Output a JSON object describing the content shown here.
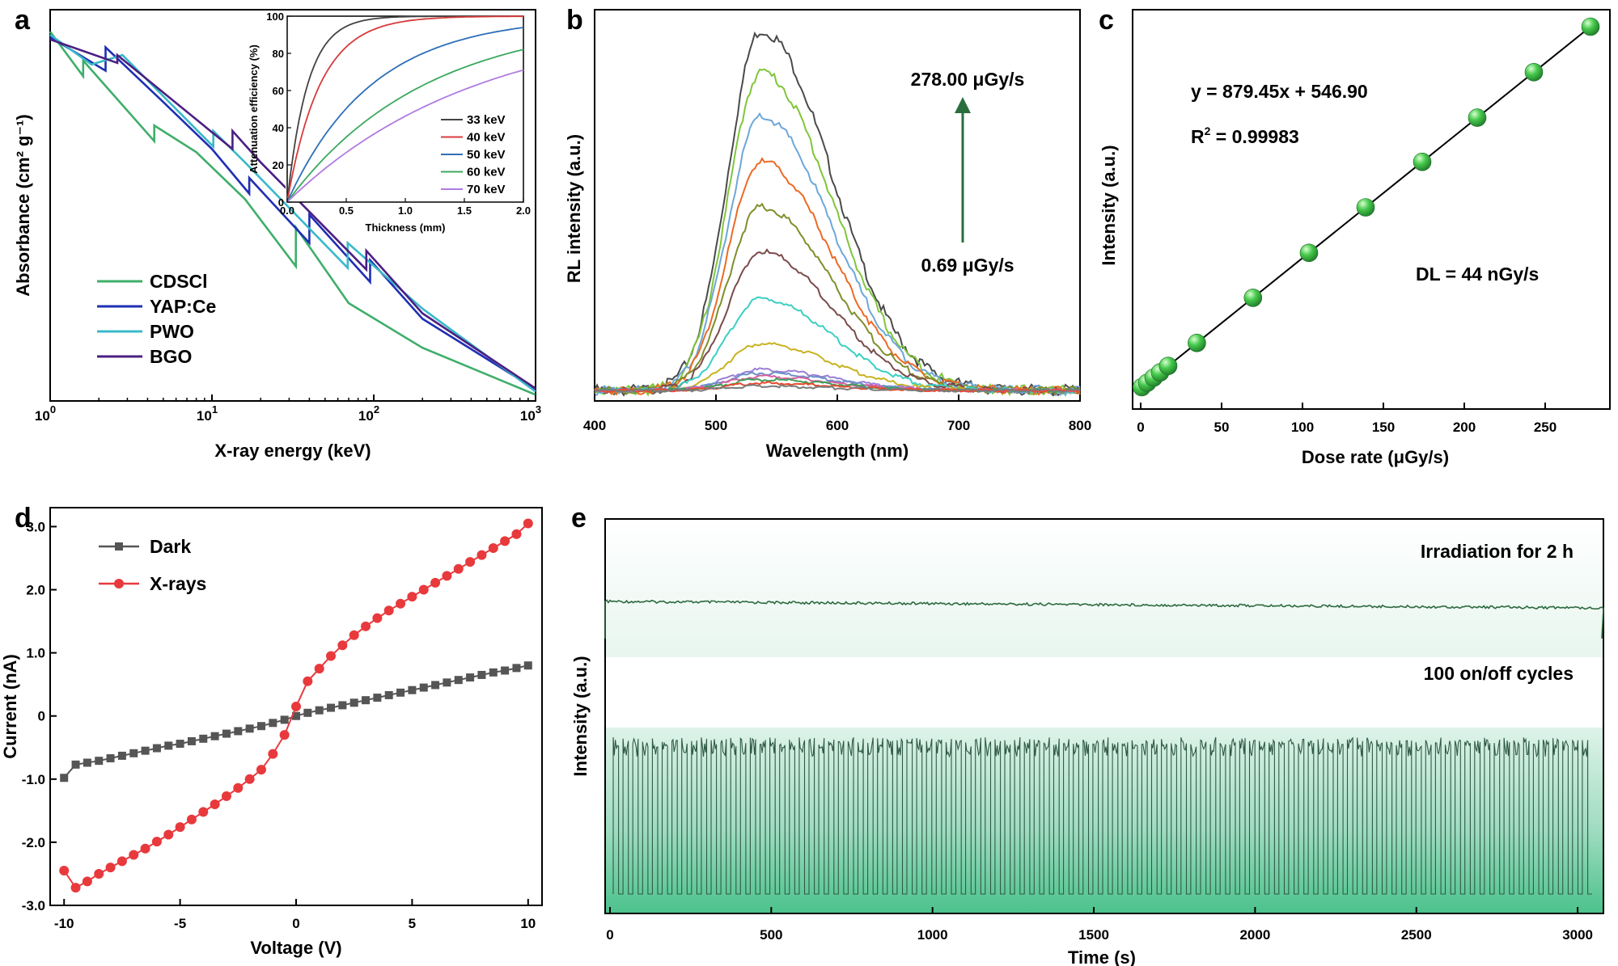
{
  "panels": {
    "a": "a",
    "b": "b",
    "c": "c",
    "d": "d",
    "e": "e"
  },
  "colors": {
    "cdsci": "#3fae6a",
    "yap": "#1f2fb3",
    "pwo": "#39b9c9",
    "bgo": "#4b1f82",
    "k33": "#444444",
    "k40": "#d83b3b",
    "k50": "#2e6fb8",
    "k60": "#3da85f",
    "k70": "#b07be0",
    "dark": "#555555",
    "xray": "#e8393c",
    "sphere": "#3ec04a",
    "arrow": "#2b6e3e",
    "trace": "#2f5a45",
    "band": "#4cc28c"
  },
  "chart_data": [
    {
      "id": "a",
      "type": "line",
      "title": "",
      "xlabel": "X-ray energy (keV)",
      "ylabel": "Absorbance (cm² g⁻¹)",
      "xscale": "log",
      "xlim": [
        1,
        1000
      ],
      "ylim_log": [
        -1.6,
        3.4
      ],
      "x_ticks": [
        {
          "base": "10",
          "exp": "0"
        },
        {
          "base": "10",
          "exp": "1"
        },
        {
          "base": "10",
          "exp": "2"
        },
        {
          "base": "10",
          "exp": "3"
        }
      ],
      "legend_position": "bottom-left",
      "series": [
        {
          "name": "CDSCl",
          "color_key": "cdsci",
          "points": [
            [
              1,
              3.12
            ],
            [
              1.6,
              2.55
            ],
            [
              1.6,
              2.75
            ],
            [
              4.4,
              1.72
            ],
            [
              4.4,
              1.92
            ],
            [
              8,
              1.58
            ],
            [
              16,
              0.98
            ],
            [
              33,
              0.12
            ],
            [
              33,
              0.62
            ],
            [
              70,
              -0.35
            ],
            [
              200,
              -0.92
            ],
            [
              1000,
              -1.52
            ]
          ]
        },
        {
          "name": "YAP:Ce",
          "color_key": "yap",
          "points": [
            [
              1,
              3.05
            ],
            [
              2.2,
              2.62
            ],
            [
              2.2,
              2.92
            ],
            [
              5,
              2.22
            ],
            [
              10,
              1.62
            ],
            [
              17,
              1.05
            ],
            [
              17,
              1.25
            ],
            [
              40,
              0.42
            ],
            [
              40,
              0.78
            ],
            [
              95,
              -0.08
            ],
            [
              95,
              0.2
            ],
            [
              200,
              -0.55
            ],
            [
              1000,
              -1.45
            ]
          ]
        },
        {
          "name": "PWO",
          "color_key": "pwo",
          "points": [
            [
              1,
              3.08
            ],
            [
              1.8,
              2.7
            ],
            [
              2.8,
              2.82
            ],
            [
              10.2,
              1.65
            ],
            [
              10.2,
              1.85
            ],
            [
              16,
              1.45
            ],
            [
              69,
              0.1
            ],
            [
              69,
              0.42
            ],
            [
              200,
              -0.42
            ],
            [
              1000,
              -1.48
            ]
          ]
        },
        {
          "name": "BGO",
          "color_key": "bgo",
          "points": [
            [
              1,
              3.02
            ],
            [
              2.6,
              2.72
            ],
            [
              2.6,
              2.82
            ],
            [
              13.4,
              1.62
            ],
            [
              13.4,
              1.85
            ],
            [
              20,
              1.45
            ],
            [
              90,
              0.08
            ],
            [
              90,
              0.32
            ],
            [
              200,
              -0.48
            ],
            [
              1000,
              -1.44
            ]
          ]
        }
      ],
      "inset": {
        "type": "line",
        "xlabel": "Thickness (mm)",
        "ylabel": "Attenuation efficiency (%)",
        "xlim": [
          0,
          2
        ],
        "ylim": [
          0,
          100
        ],
        "x_ticks": [
          "0.0",
          "0.5",
          "1.0",
          "1.5",
          "2.0"
        ],
        "y_ticks": [
          "0",
          "20",
          "40",
          "60",
          "80",
          "100"
        ],
        "legend_position": "bottom-right",
        "series": [
          {
            "name": "33 keV",
            "color_key": "k33",
            "mu": 5.8
          },
          {
            "name": "40 keV",
            "color_key": "k40",
            "mu": 3.6
          },
          {
            "name": "50 keV",
            "color_key": "k50",
            "mu": 1.4
          },
          {
            "name": "60 keV",
            "color_key": "k60",
            "mu": 0.86
          },
          {
            "name": "70 keV",
            "color_key": "k70",
            "mu": 0.62
          }
        ]
      }
    },
    {
      "id": "b",
      "type": "line",
      "xlabel": "Wavelength (nm)",
      "ylabel": "RL intensity (a.u.)",
      "xlim": [
        400,
        800
      ],
      "ylim": [
        0,
        1.06
      ],
      "x_ticks": [
        "400",
        "500",
        "600",
        "700",
        "800"
      ],
      "peak_nm": 537,
      "annotation_top": "278.00 μGy/s",
      "annotation_bottom": "0.69 μGy/s",
      "series": [
        {
          "color": "#4a4a4a",
          "peak": 1.0
        },
        {
          "color": "#7ec63a",
          "peak": 0.885
        },
        {
          "color": "#6da7d8",
          "peak": 0.76
        },
        {
          "color": "#ec6a24",
          "peak": 0.635
        },
        {
          "color": "#7e8f2b",
          "peak": 0.51
        },
        {
          "color": "#7a4b4b",
          "peak": 0.385
        },
        {
          "color": "#3bcfc3",
          "peak": 0.255
        },
        {
          "color": "#c8b320",
          "peak": 0.13
        },
        {
          "color": "#9a7fd6",
          "peak": 0.058
        },
        {
          "color": "#6b90c8",
          "peak": 0.048
        },
        {
          "color": "#d65fa0",
          "peak": 0.038
        },
        {
          "color": "#3e9e58",
          "peak": 0.03
        },
        {
          "color": "#e84b30",
          "peak": 0.02
        },
        {
          "color": "#7a7a7a",
          "peak": 0.012
        }
      ]
    },
    {
      "id": "c",
      "type": "scatter",
      "xlabel": "Dose rate (μGy/s)",
      "ylabel": "Intensity (a.u.)",
      "xlim": [
        -5,
        290
      ],
      "x_ticks": [
        "0",
        "50",
        "100",
        "150",
        "200",
        "250"
      ],
      "fit": {
        "slope": 879.45,
        "intercept": 546.9
      },
      "equation": "y = 879.45x + 546.90",
      "r2_label": "R",
      "r2_sup": "2",
      "r2_value": " = 0.99983",
      "dl": "DL = 44 nGy/s",
      "x": [
        0.69,
        4,
        8,
        12,
        17,
        34.7,
        69.4,
        104,
        139,
        174,
        208,
        243,
        278
      ]
    },
    {
      "id": "d",
      "type": "line",
      "xlabel": "Voltage (V)",
      "ylabel": "Current (nA)",
      "xlim": [
        -10.6,
        10.6
      ],
      "ylim": [
        -3.0,
        3.3
      ],
      "x_ticks": [
        "-10",
        "-5",
        "0",
        "5",
        "10"
      ],
      "y_ticks": [
        "-3.0",
        "-2.0",
        "-1.0",
        "0",
        "1.0",
        "2.0",
        "3.0"
      ],
      "legend_position": "top-left",
      "series": [
        {
          "name": "Dark",
          "marker": "square",
          "color_key": "dark",
          "x": [
            -10,
            -9.5,
            -9,
            -8.5,
            -8,
            -7.5,
            -7,
            -6.5,
            -6,
            -5.5,
            -5,
            -4.5,
            -4,
            -3.5,
            -3,
            -2.5,
            -2,
            -1.5,
            -1,
            -0.5,
            0,
            0.5,
            1,
            1.5,
            2,
            2.5,
            3,
            3.5,
            4,
            4.5,
            5,
            5.5,
            6,
            6.5,
            7,
            7.5,
            8,
            8.5,
            9,
            9.5,
            10
          ],
          "y": [
            -0.98,
            -0.77,
            -0.74,
            -0.71,
            -0.67,
            -0.63,
            -0.59,
            -0.55,
            -0.51,
            -0.47,
            -0.44,
            -0.4,
            -0.36,
            -0.32,
            -0.28,
            -0.24,
            -0.2,
            -0.16,
            -0.11,
            -0.06,
            0.0,
            0.05,
            0.09,
            0.13,
            0.17,
            0.21,
            0.25,
            0.29,
            0.33,
            0.37,
            0.41,
            0.45,
            0.49,
            0.53,
            0.57,
            0.61,
            0.65,
            0.69,
            0.72,
            0.76,
            0.8
          ]
        },
        {
          "name": "X-rays",
          "marker": "circle",
          "color_key": "xray",
          "x": [
            -10,
            -9.5,
            -9,
            -8.5,
            -8,
            -7.5,
            -7,
            -6.5,
            -6,
            -5.5,
            -5,
            -4.5,
            -4,
            -3.5,
            -3,
            -2.5,
            -2,
            -1.5,
            -1,
            -0.5,
            0,
            0.5,
            1,
            1.5,
            2,
            2.5,
            3,
            3.5,
            4,
            4.5,
            5,
            5.5,
            6,
            6.5,
            7,
            7.5,
            8,
            8.5,
            9,
            9.5,
            10
          ],
          "y": [
            -2.45,
            -2.72,
            -2.62,
            -2.5,
            -2.4,
            -2.3,
            -2.2,
            -2.1,
            -1.99,
            -1.88,
            -1.76,
            -1.64,
            -1.52,
            -1.4,
            -1.27,
            -1.14,
            -1.0,
            -0.85,
            -0.6,
            -0.3,
            0.15,
            0.55,
            0.75,
            0.95,
            1.12,
            1.28,
            1.42,
            1.55,
            1.67,
            1.78,
            1.89,
            2.0,
            2.11,
            2.22,
            2.33,
            2.44,
            2.55,
            2.66,
            2.77,
            2.88,
            3.05
          ]
        }
      ]
    },
    {
      "id": "e",
      "type": "line",
      "xlabel": "Time (s)",
      "ylabel": "Intensity (a.u.)",
      "xlim": [
        -15,
        3080
      ],
      "x_ticks": [
        "0",
        "500",
        "1000",
        "1500",
        "2000",
        "2500",
        "3000"
      ],
      "label_top": "Irradiation for 2 h",
      "label_bottom": "100 on/off cycles",
      "cycles": 100,
      "series": [
        {
          "name": "Irradiation for 2 h",
          "kind": "continuous",
          "start_level": 1.0,
          "end_level": 0.97
        },
        {
          "name": "100 on/off cycles",
          "kind": "pulsed",
          "on_level": 0.93,
          "off_level": 0.0
        }
      ]
    }
  ]
}
